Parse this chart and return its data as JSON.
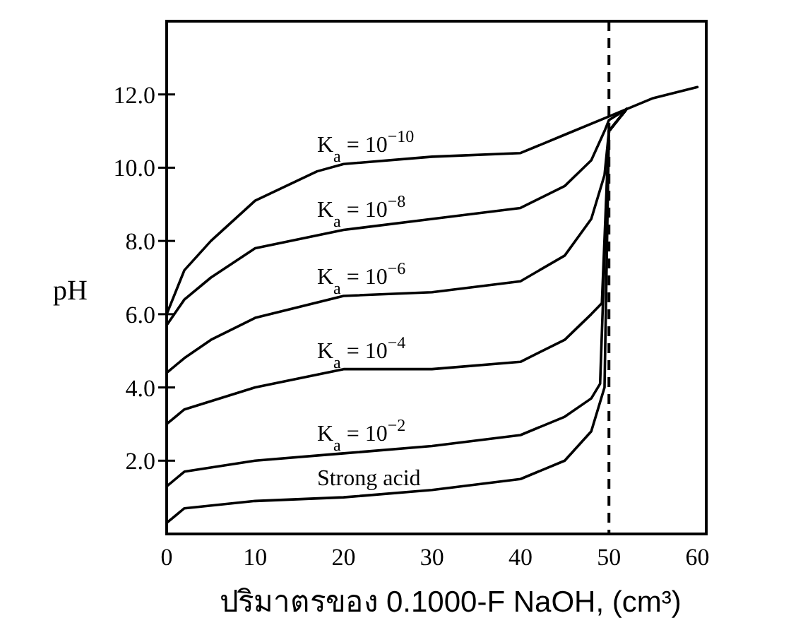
{
  "chart_data": {
    "type": "line",
    "xlabel": "ปริมาตรของ 0.1000-F NaOH, (cm³)",
    "ylabel": "pH",
    "xlim": [
      0,
      61
    ],
    "ylim": [
      0,
      14
    ],
    "xticks": [
      0,
      10,
      20,
      30,
      40,
      50,
      60
    ],
    "yticks": [
      {
        "value": 2,
        "label": "2.0"
      },
      {
        "value": 4,
        "label": "4.0"
      },
      {
        "value": 6,
        "label": "6.0"
      },
      {
        "value": 8,
        "label": "8.0"
      },
      {
        "value": 10,
        "label": "10.0"
      },
      {
        "value": 12,
        "label": "12.0"
      }
    ],
    "grid": false,
    "legend": false,
    "marker": "none",
    "line_style": "solid",
    "ref_lines": [
      {
        "axis": "x",
        "value": 50,
        "color": "#000000",
        "line_style": "dashed"
      }
    ],
    "series": [
      {
        "name": "K$_{a}$ = 10$^{−10}$",
        "color": "#000000",
        "x": [
          0,
          2,
          5,
          10,
          17,
          20,
          30,
          40,
          45,
          50,
          55,
          60
        ],
        "values": [
          6.0,
          7.2,
          8.0,
          9.1,
          9.9,
          10.1,
          10.3,
          10.4,
          10.9,
          11.4,
          11.9,
          12.2
        ]
      },
      {
        "name": "K$_{a}$ = 10$^{−8}$",
        "color": "#000000",
        "x": [
          0,
          2,
          5,
          10,
          20,
          30,
          40,
          45,
          48,
          49.5,
          50,
          52
        ],
        "values": [
          5.7,
          6.4,
          7.0,
          7.8,
          8.3,
          8.6,
          8.9,
          9.5,
          10.2,
          11.0,
          11.3,
          11.6
        ]
      },
      {
        "name": "K$_{a}$ = 10$^{−6}$",
        "color": "#000000",
        "x": [
          0,
          2,
          5,
          10,
          20,
          30,
          40,
          45,
          48,
          49.5,
          50,
          52
        ],
        "values": [
          4.4,
          4.8,
          5.3,
          5.9,
          6.5,
          6.6,
          6.9,
          7.6,
          8.6,
          9.8,
          11.0,
          11.6
        ]
      },
      {
        "name": "K$_{a}$ = 10$^{−4}$",
        "color": "#000000",
        "x": [
          0,
          2,
          10,
          20,
          30,
          40,
          45,
          48,
          49.2,
          50,
          52
        ],
        "values": [
          3.0,
          3.4,
          4.0,
          4.5,
          4.5,
          4.7,
          5.3,
          6.0,
          6.3,
          11.0,
          11.6
        ]
      },
      {
        "name": "K$_{a}$ = 10$^{−2}$",
        "color": "#000000",
        "x": [
          0,
          2,
          10,
          20,
          30,
          40,
          45,
          48,
          49,
          50,
          52
        ],
        "values": [
          1.3,
          1.7,
          2.0,
          2.2,
          2.4,
          2.7,
          3.2,
          3.7,
          4.1,
          11.0,
          11.6
        ]
      },
      {
        "name": "Strong acid",
        "color": "#000000",
        "x": [
          0,
          2,
          10,
          20,
          30,
          40,
          45,
          48,
          49.5,
          50,
          52
        ],
        "values": [
          0.3,
          0.7,
          0.9,
          1.0,
          1.2,
          1.5,
          2.0,
          2.8,
          4.0,
          11.0,
          11.6
        ]
      }
    ]
  }
}
